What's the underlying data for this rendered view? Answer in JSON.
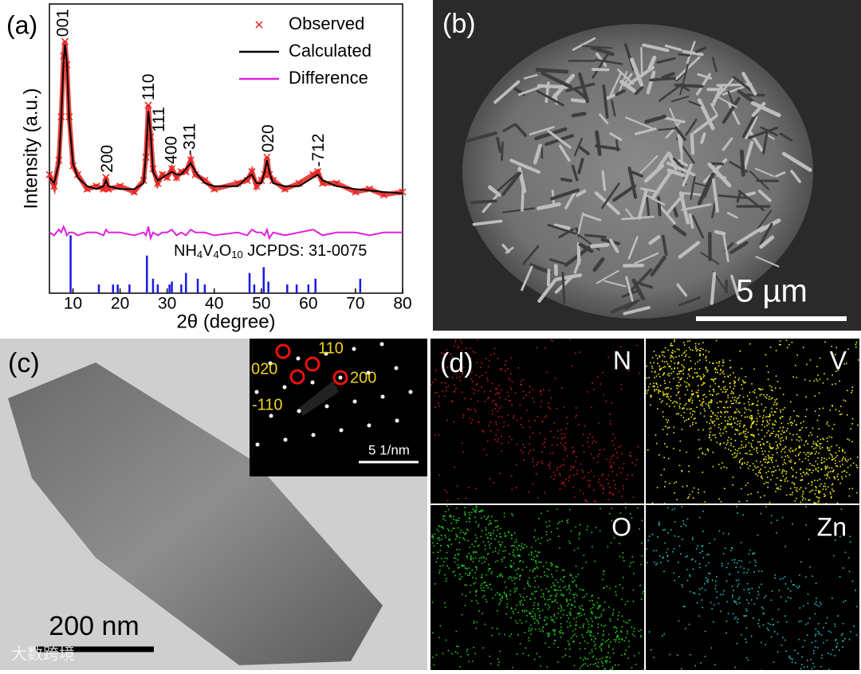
{
  "chart_data": {
    "type": "line",
    "panel_label": "(a)",
    "x_label": "2θ (degree)",
    "y_label": "Intensity (a.u.)",
    "xlim": [
      5,
      80
    ],
    "xticks": [
      10,
      20,
      30,
      40,
      50,
      60,
      70,
      80
    ],
    "ylim": [
      0,
      100
    ],
    "legend": "upper right",
    "x": [
      5,
      6,
      7,
      7.5,
      8,
      8.3,
      8.7,
      9.2,
      10,
      11,
      13,
      15,
      16.5,
      17,
      17.5,
      20,
      23,
      25,
      25.5,
      26,
      26.5,
      27,
      28,
      29,
      30,
      31,
      32,
      33,
      34,
      35,
      36,
      38,
      40,
      45,
      47,
      48,
      49,
      50,
      50.7,
      51.2,
      51.7,
      52.5,
      55,
      58,
      61,
      62,
      63,
      66,
      70,
      73,
      76,
      80
    ],
    "series": [
      {
        "name": "Observed",
        "color": "#e8231f",
        "style": "markers",
        "values": [
          41,
          37,
          46,
          61,
          82,
          87,
          79,
          61,
          44,
          41,
          36,
          37,
          36,
          40,
          36,
          37,
          35,
          39,
          47,
          65,
          54,
          43,
          38,
          41,
          40,
          43,
          40,
          42,
          42,
          46,
          41,
          39,
          36,
          38,
          39,
          42,
          37,
          39,
          41,
          47,
          41,
          39,
          36,
          38,
          41,
          42,
          38,
          38,
          35,
          36,
          34,
          35
        ]
      },
      {
        "name": "Calculated",
        "color": "#000000",
        "style": "line",
        "values": [
          40,
          38,
          45,
          60,
          80,
          86,
          80,
          60,
          45,
          40,
          37,
          36,
          37,
          39,
          37,
          36,
          36,
          38,
          48,
          63,
          55,
          42,
          39,
          40,
          41,
          42,
          41,
          41,
          43,
          45,
          42,
          38,
          37,
          37,
          40,
          41,
          38,
          38,
          42,
          46,
          42,
          38,
          37,
          37,
          40,
          41,
          39,
          37,
          36,
          35.5,
          35,
          34.5
        ]
      },
      {
        "name": "Difference",
        "color": "#e020e0",
        "style": "line",
        "values": [
          21,
          20,
          22,
          21,
          23,
          22,
          20,
          21,
          21,
          20,
          21,
          21,
          20,
          22,
          21,
          21,
          20,
          21,
          20,
          23,
          19,
          21,
          20,
          21,
          21,
          22,
          20,
          21,
          20,
          22,
          21,
          21,
          20,
          21,
          20,
          22,
          21,
          21,
          20,
          22,
          19,
          21,
          20,
          21,
          22,
          21,
          20,
          21,
          21,
          20,
          21,
          21
        ]
      },
      {
        "color": "#1a1adf",
        "style": "sticks",
        "x": [
          9.5,
          15.5,
          18.5,
          19.5,
          22,
          25.7,
          27,
          28,
          30.5,
          31,
          33,
          34,
          36.5,
          38,
          47.5,
          48.5,
          50.5,
          51.5,
          55.5,
          57.5,
          60,
          61.5,
          71
        ],
        "values": [
          20,
          3,
          3,
          3,
          3,
          13,
          5,
          3,
          3,
          4,
          3,
          7,
          5,
          3,
          7,
          3,
          9,
          4,
          3,
          3,
          3,
          5,
          5
        ]
      }
    ],
    "reference_label": [
      "NH",
      "4",
      "V",
      "4",
      "O",
      "10",
      " JCPDS: 31-0075"
    ],
    "annotations": [
      {
        "text": "001",
        "x": 8
      },
      {
        "text": "200",
        "x": 17.4
      },
      {
        "text": "110",
        "x": 26.2
      },
      {
        "text": "111",
        "x": 28.4
      },
      {
        "text": "400",
        "x": 31.1
      },
      {
        "text": "-311",
        "x": 35
      },
      {
        "text": "020",
        "x": 51.6
      },
      {
        "text": "-712",
        "x": 62.3
      }
    ]
  },
  "panel_b": {
    "label": "(b)",
    "scale_bar": "5 µm"
  },
  "panel_c": {
    "label": "(c)",
    "scale_bar": "200 nm",
    "inset": {
      "spots": [
        "020",
        "110",
        "200",
        "-110"
      ],
      "scale_bar": "5 1/nm"
    }
  },
  "panel_d": {
    "label": "(d)",
    "maps": [
      "N",
      "V",
      "O",
      "Zn"
    ]
  },
  "watermark": "大数跨境"
}
